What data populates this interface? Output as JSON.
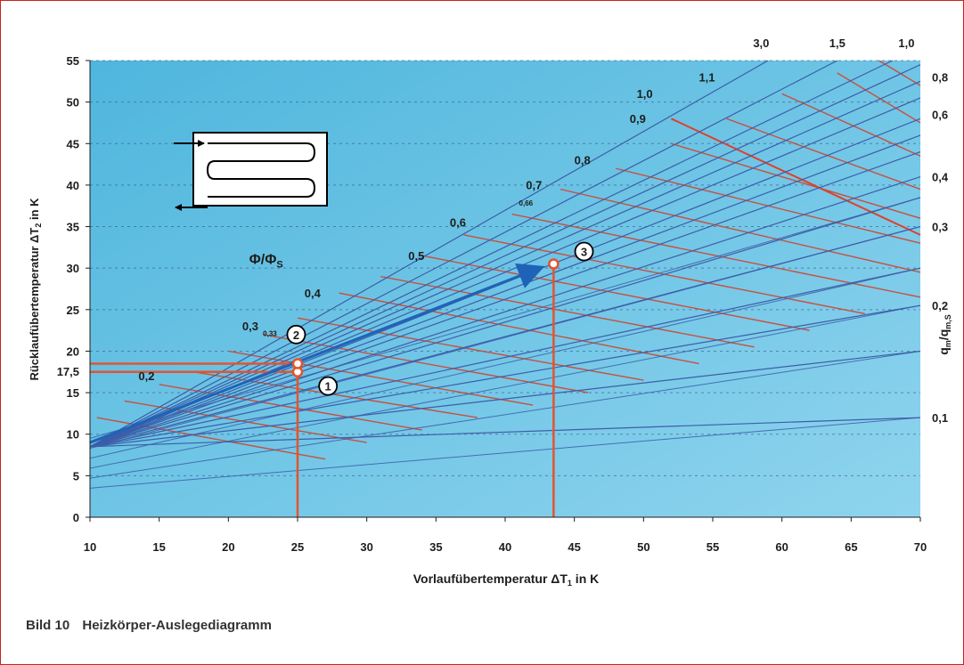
{
  "caption": {
    "number": "Bild 10",
    "title": "Heizkörper-Auslegediagramm"
  },
  "colors": {
    "plot_bg": "#4fb6dd",
    "plot_bg_light": "#8fd4ee",
    "blue_line": "#3c5ea8",
    "red_line": "#c8503e",
    "marker": "#e4542c",
    "arrow": "#1f63b8",
    "frame": "#c9241d"
  },
  "chart_data": {
    "type": "line",
    "xlabel_pre": "Vorlaufübertemperatur ",
    "xlabel_sym": "ΔT",
    "xlabel_sub": "1",
    "xlabel_post": " in K",
    "ylabel_pre": "Rücklaufübertemperatur ",
    "ylabel_sym": "ΔT",
    "ylabel_sub": "2",
    "ylabel_post": " in K",
    "xlim": [
      10,
      70
    ],
    "ylim": [
      0,
      55
    ],
    "x_ticks": [
      10,
      15,
      20,
      25,
      30,
      35,
      40,
      45,
      50,
      55,
      60,
      65,
      70
    ],
    "y_ticks": [
      0,
      5,
      10,
      15,
      20,
      25,
      30,
      35,
      40,
      45,
      50,
      55
    ],
    "y_tick_extra": {
      "value": 17.5,
      "label": "17,5"
    },
    "grid": "dashed-horizontal",
    "phi_ratio_label": {
      "main": "Φ/Φ",
      "sub": "S",
      "x": 21.5,
      "y": 30.5
    },
    "phi_ratio_values": [
      {
        "label": "0,2",
        "x": 13.5,
        "y": 16.5
      },
      {
        "label": "0,3",
        "x": 21.0,
        "y": 22.5
      },
      {
        "label": "0,33",
        "x": 22.5,
        "y": 21.8,
        "small": true
      },
      {
        "label": "0,4",
        "x": 25.5,
        "y": 26.5
      },
      {
        "label": "0,5",
        "x": 33.0,
        "y": 31.0
      },
      {
        "label": "0,6",
        "x": 36.0,
        "y": 35.0
      },
      {
        "label": "0,66",
        "x": 41.0,
        "y": 37.5,
        "small": true
      },
      {
        "label": "0,7",
        "x": 41.5,
        "y": 39.5
      },
      {
        "label": "0,8",
        "x": 45.0,
        "y": 42.5
      },
      {
        "label": "0,9",
        "x": 49.0,
        "y": 47.5
      },
      {
        "label": "1,0",
        "x": 49.5,
        "y": 50.5
      },
      {
        "label": "1,1",
        "x": 54.0,
        "y": 52.5
      }
    ],
    "flow_ratio_label": {
      "main": "q",
      "sub1": "m",
      "mid": "/q",
      "sub2": "m,S"
    },
    "flow_ratio_ticks": [
      {
        "label": "1,0",
        "position": "top",
        "x": 69.0
      },
      {
        "label": "1,5",
        "position": "top",
        "x": 64.0
      },
      {
        "label": "3,0",
        "position": "top",
        "x": 58.5
      },
      {
        "label": "0,8",
        "position": "right",
        "y": 53.0
      },
      {
        "label": "0,6",
        "position": "right",
        "y": 48.5
      },
      {
        "label": "0,4",
        "position": "right",
        "y": 41.0
      },
      {
        "label": "0,3",
        "position": "right",
        "y": 35.0
      },
      {
        "label": "0,2",
        "position": "right",
        "y": 25.5
      },
      {
        "label": "0,1",
        "position": "right",
        "y": 12.0
      }
    ],
    "blue_fan_endpoints": [
      {
        "x": 70,
        "y": 12
      },
      {
        "x": 70,
        "y": 20
      },
      {
        "x": 70,
        "y": 25.5
      },
      {
        "x": 70,
        "y": 30
      },
      {
        "x": 70,
        "y": 35
      },
      {
        "x": 70,
        "y": 38.5
      },
      {
        "x": 70,
        "y": 41
      },
      {
        "x": 70,
        "y": 44
      },
      {
        "x": 70,
        "y": 46
      },
      {
        "x": 70,
        "y": 48
      },
      {
        "x": 70,
        "y": 50.5
      },
      {
        "x": 70,
        "y": 52.5
      },
      {
        "x": 70,
        "y": 54.5
      },
      {
        "x": 68,
        "y": 55
      },
      {
        "x": 64,
        "y": 55
      },
      {
        "x": 59,
        "y": 55
      }
    ],
    "red_isolines": [
      {
        "x1": 10.5,
        "y1": 12,
        "x2": 27,
        "y2": 7
      },
      {
        "x1": 12.5,
        "y1": 14,
        "x2": 30,
        "y2": 9
      },
      {
        "x1": 15,
        "y1": 16,
        "x2": 34,
        "y2": 10.5
      },
      {
        "x1": 17.5,
        "y1": 17.5,
        "x2": 38,
        "y2": 12
      },
      {
        "x1": 20,
        "y1": 20,
        "x2": 42,
        "y2": 13.5
      },
      {
        "x1": 22.5,
        "y1": 22,
        "x2": 46,
        "y2": 15
      },
      {
        "x1": 25,
        "y1": 24,
        "x2": 50,
        "y2": 16.5
      },
      {
        "x1": 28,
        "y1": 27,
        "x2": 54,
        "y2": 18.5
      },
      {
        "x1": 31,
        "y1": 29,
        "x2": 58,
        "y2": 20.5
      },
      {
        "x1": 34,
        "y1": 31.5,
        "x2": 62,
        "y2": 22.5
      },
      {
        "x1": 37,
        "y1": 34,
        "x2": 66,
        "y2": 24.5
      },
      {
        "x1": 40.5,
        "y1": 36.5,
        "x2": 70,
        "y2": 26.5
      },
      {
        "x1": 44,
        "y1": 39.5,
        "x2": 70,
        "y2": 29.5
      },
      {
        "x1": 48,
        "y1": 42,
        "x2": 70,
        "y2": 33
      },
      {
        "x1": 52,
        "y1": 45,
        "x2": 70,
        "y2": 36
      },
      {
        "x1": 56,
        "y1": 48,
        "x2": 70,
        "y2": 39.5
      },
      {
        "x1": 60,
        "y1": 51,
        "x2": 70,
        "y2": 43.5
      },
      {
        "x1": 64,
        "y1": 53.5,
        "x2": 70,
        "y2": 47.5
      },
      {
        "x1": 67,
        "y1": 55,
        "x2": 70,
        "y2": 52
      }
    ],
    "highlight_red": {
      "x1": 52,
      "y1": 48,
      "x2": 70,
      "y2": 34
    },
    "points": [
      {
        "label": "1",
        "x": 25,
        "y": 17.5,
        "badge_x": 27.2,
        "badge_y": 15.8
      },
      {
        "label": "2",
        "x": 25,
        "y": 18.5,
        "badge_x": 24.9,
        "badge_y": 22.0
      },
      {
        "label": "3",
        "x": 43.5,
        "y": 30.5,
        "badge_x": 45.7,
        "badge_y": 32.0
      }
    ],
    "arrow": {
      "x1": 10,
      "y1": 9,
      "x2": 42.5,
      "y2": 30
    },
    "construction_lines": [
      {
        "x1": 10,
        "y1": 18.5,
        "x2": 25,
        "y2": 18.5
      },
      {
        "x1": 10,
        "y1": 17.5,
        "x2": 25,
        "y2": 17.5
      },
      {
        "x1": 25,
        "y1": 0,
        "x2": 25,
        "y2": 18.5
      },
      {
        "x1": 43.5,
        "y1": 0,
        "x2": 43.5,
        "y2": 30.5
      }
    ]
  }
}
